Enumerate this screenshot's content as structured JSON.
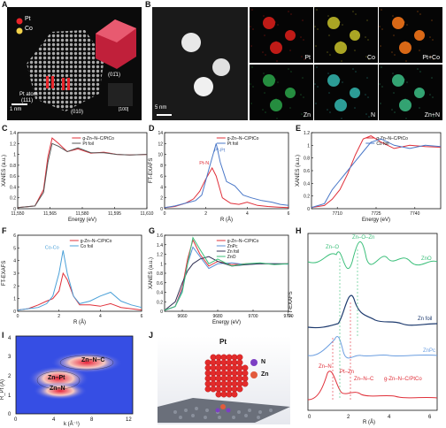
{
  "panels": {
    "A": {
      "letter": "A",
      "legend_pt": "Pt",
      "legend_co": "Co",
      "label_pt_atom": "Pt atom",
      "label_111": "(111)",
      "label_010": "(010)",
      "label_01_1": "(01̄1)",
      "label_100": "[100]",
      "scale": "1 nm",
      "colors": {
        "pt": "#e8242a",
        "co": "#f2d24a"
      }
    },
    "B": {
      "letter": "B",
      "scale": "5 nm",
      "maps": [
        "Pt",
        "Co",
        "Pt+Co",
        "Zn",
        "N",
        "Zn+N"
      ],
      "map_colors": [
        "#e0201b",
        "#c8c22a",
        "#ff7a1a",
        "#2ca64a",
        "#34b7b0",
        "#3cbf86"
      ]
    },
    "C": {
      "letter": "C",
      "ylabel": "XANES (a.u.)",
      "xlabel": "Energy (eV)",
      "legend": [
        "g-Zn–N–C/PtCo",
        "Pt foil"
      ]
    },
    "D": {
      "letter": "D",
      "ylabel": "FT-EXAFS",
      "xlabel": "R (Å)",
      "legend": [
        "g-Zn–N–C/PtCo",
        "Pt foil"
      ],
      "ann": [
        "Pt-Pt",
        "Pt-N"
      ]
    },
    "E": {
      "letter": "E",
      "ylabel": "XANES (a.u.)",
      "xlabel": "Energy (eV)",
      "legend": [
        "g-Zn–N–C/PtCo",
        "Co foil"
      ]
    },
    "F": {
      "letter": "F",
      "ylabel": "FT-EXAFS",
      "xlabel": "R (Å)",
      "legend": [
        "g-Zn–N–C/PtCo",
        "Co foil"
      ],
      "ann": [
        "Co-Co"
      ]
    },
    "G": {
      "letter": "G",
      "ylabel": "XANES (a.u.)",
      "xlabel": "Energy (eV)",
      "legend": [
        "g-Zn–N–C/PtCo",
        "ZnPc",
        "Zn foil",
        "ZnO"
      ]
    },
    "H": {
      "letter": "H",
      "ylabel": "FT-EXAFS",
      "xlabel": "R (Å)",
      "ann": [
        "Zn–O",
        "Zn–O–Zn",
        "ZnO",
        "Zn foil",
        "ZnPc",
        "Zn–N",
        "Pt–Zn",
        "Zn–N–C",
        "g-Zn–N–C/PtCo"
      ]
    },
    "I": {
      "letter": "I",
      "ylabel": "R_Pt (Å)",
      "xlabel": "k (Å⁻¹)",
      "ann": [
        "Zn–N–C",
        "Zn–Pt",
        "Zn–N"
      ]
    },
    "J": {
      "letter": "J",
      "title": "Pt",
      "legend_n": "N",
      "legend_zn": "Zn"
    }
  },
  "chart_data": [
    {
      "type": "line",
      "id": "C",
      "x": [
        11550,
        11565,
        11580,
        11595,
        11610
      ],
      "xlim": [
        11550,
        11610
      ],
      "ylim": [
        0,
        1.4
      ],
      "yticks": [
        0,
        0.2,
        0.4,
        0.6,
        0.8,
        1.0,
        1.2,
        1.4
      ],
      "series": [
        {
          "name": "g-Zn–N–C/PtCo",
          "x": [
            11550,
            11558,
            11562,
            11564,
            11566,
            11569,
            11573,
            11578,
            11584,
            11590,
            11596,
            11602,
            11610
          ],
          "y": [
            0.02,
            0.05,
            0.35,
            0.95,
            1.3,
            1.2,
            1.05,
            1.1,
            1.02,
            1.04,
            1.0,
            0.99,
            1.0
          ],
          "color": "#e0303a"
        },
        {
          "name": "Pt foil",
          "x": [
            11550,
            11558,
            11562,
            11564,
            11566,
            11569,
            11573,
            11578,
            11584,
            11590,
            11596,
            11602,
            11610
          ],
          "y": [
            0.02,
            0.05,
            0.3,
            0.85,
            1.2,
            1.15,
            1.05,
            1.12,
            1.03,
            1.03,
            1.0,
            0.99,
            1.0
          ],
          "color": "#555555"
        }
      ]
    },
    {
      "type": "line",
      "id": "D",
      "xlim": [
        0,
        6
      ],
      "ylim": [
        0,
        14
      ],
      "yticks": [
        0,
        2,
        4,
        6,
        8,
        10,
        12,
        14
      ],
      "xticks": [
        0,
        2,
        4,
        6
      ],
      "series": [
        {
          "name": "g-Zn–N–C/PtCo",
          "x": [
            0,
            0.5,
            1.0,
            1.4,
            1.7,
            2.0,
            2.3,
            2.5,
            2.8,
            3.2,
            3.6,
            4.0,
            4.5,
            5.0,
            5.5,
            6.0
          ],
          "y": [
            0.2,
            0.4,
            1.0,
            1.8,
            3.2,
            5.5,
            7.5,
            6.0,
            2.0,
            1.0,
            0.8,
            1.2,
            0.6,
            0.4,
            0.3,
            0.2
          ],
          "color": "#e0303a"
        },
        {
          "name": "Pt foil",
          "x": [
            0,
            0.5,
            1.0,
            1.5,
            1.8,
            2.2,
            2.5,
            2.7,
            3.0,
            3.4,
            3.8,
            4.2,
            4.7,
            5.2,
            5.6,
            6.0
          ],
          "y": [
            0.2,
            0.5,
            1.0,
            1.5,
            2.5,
            8.0,
            12.0,
            8.5,
            5.0,
            4.2,
            2.5,
            2.0,
            1.5,
            1.2,
            0.8,
            0.6
          ],
          "color": "#4a78c8"
        }
      ]
    },
    {
      "type": "line",
      "id": "E",
      "xlim": [
        7700,
        7750
      ],
      "ylim": [
        0,
        1.2
      ],
      "xticks": [
        7710,
        7725,
        7740
      ],
      "yticks": [
        0,
        0.2,
        0.4,
        0.6,
        0.8,
        1.0,
        1.2
      ],
      "series": [
        {
          "name": "g-Zn–N–C/PtCo",
          "x": [
            7700,
            7705,
            7708,
            7711,
            7714,
            7717,
            7720,
            7723,
            7727,
            7732,
            7738,
            7744,
            7750
          ],
          "y": [
            0.02,
            0.05,
            0.15,
            0.3,
            0.55,
            0.85,
            1.1,
            1.15,
            1.05,
            0.95,
            1.0,
            0.98,
            0.97
          ],
          "color": "#e0303a"
        },
        {
          "name": "Co foil",
          "x": [
            7700,
            7705,
            7708,
            7711,
            7714,
            7717,
            7720,
            7723,
            7727,
            7732,
            7738,
            7744,
            7750
          ],
          "y": [
            0.02,
            0.08,
            0.3,
            0.45,
            0.6,
            0.75,
            0.9,
            1.05,
            1.1,
            1.0,
            0.95,
            1.0,
            0.98
          ],
          "color": "#4a78c8"
        }
      ]
    },
    {
      "type": "line",
      "id": "F",
      "xlim": [
        0,
        6
      ],
      "ylim": [
        0,
        6
      ],
      "xticks": [
        0,
        2,
        4,
        6
      ],
      "yticks": [
        0,
        1,
        2,
        3,
        4,
        5,
        6
      ],
      "series": [
        {
          "name": "g-Zn–N–C/PtCo",
          "x": [
            0,
            0.5,
            1.0,
            1.4,
            1.7,
            2.0,
            2.2,
            2.4,
            2.7,
            3.0,
            3.5,
            4.0,
            4.5,
            5.0,
            5.5,
            6.0
          ],
          "y": [
            0.1,
            0.2,
            0.5,
            0.8,
            1.0,
            1.6,
            3.0,
            2.5,
            1.2,
            0.5,
            0.5,
            0.4,
            0.6,
            0.3,
            0.2,
            0.1
          ],
          "color": "#e0303a"
        },
        {
          "name": "Co foil",
          "x": [
            0,
            0.5,
            1.0,
            1.4,
            1.7,
            2.0,
            2.2,
            2.4,
            2.7,
            3.0,
            3.5,
            4.0,
            4.5,
            5.0,
            5.5,
            6.0
          ],
          "y": [
            0.1,
            0.2,
            0.3,
            0.6,
            1.2,
            3.0,
            4.8,
            3.0,
            1.2,
            0.6,
            0.8,
            1.2,
            1.5,
            0.8,
            0.5,
            0.3
          ],
          "color": "#4aa0d8"
        }
      ]
    },
    {
      "type": "line",
      "id": "G",
      "xlim": [
        9650,
        9720
      ],
      "ylim": [
        0,
        1.6
      ],
      "xticks": [
        9660,
        9680,
        9700,
        9720
      ],
      "yticks": [
        0,
        0.2,
        0.4,
        0.6,
        0.8,
        1.0,
        1.2,
        1.4,
        1.6
      ],
      "series": [
        {
          "name": "g-Zn–N–C/PtCo",
          "x": [
            9650,
            9656,
            9660,
            9663,
            9666,
            9670,
            9675,
            9680,
            9688,
            9696,
            9704,
            9712,
            9720
          ],
          "y": [
            0.02,
            0.1,
            0.5,
            1.1,
            1.5,
            1.2,
            0.95,
            1.05,
            0.98,
            1.0,
            1.0,
            0.99,
            1.0
          ],
          "color": "#e0303a"
        },
        {
          "name": "ZnPc",
          "x": [
            9650,
            9656,
            9660,
            9663,
            9666,
            9670,
            9675,
            9680,
            9688,
            9696,
            9704,
            9712,
            9720
          ],
          "y": [
            0.02,
            0.1,
            0.45,
            1.0,
            1.35,
            1.15,
            0.9,
            1.0,
            1.02,
            0.98,
            1.0,
            1.0,
            0.99
          ],
          "color": "#5b8fd6"
        },
        {
          "name": "Zn foil",
          "x": [
            9650,
            9656,
            9660,
            9663,
            9666,
            9670,
            9675,
            9680,
            9688,
            9696,
            9704,
            9712,
            9720
          ],
          "y": [
            0.02,
            0.2,
            0.6,
            0.85,
            1.0,
            1.1,
            1.15,
            1.05,
            0.95,
            0.98,
            1.0,
            1.0,
            1.0
          ],
          "color": "#333355"
        },
        {
          "name": "ZnO",
          "x": [
            9650,
            9656,
            9660,
            9663,
            9666,
            9670,
            9675,
            9680,
            9688,
            9696,
            9704,
            9712,
            9720
          ],
          "y": [
            0.02,
            0.1,
            0.4,
            1.0,
            1.55,
            1.3,
            1.0,
            1.1,
            0.95,
            1.0,
            1.02,
            0.98,
            1.0
          ],
          "color": "#3bbf7a"
        }
      ]
    }
  ]
}
